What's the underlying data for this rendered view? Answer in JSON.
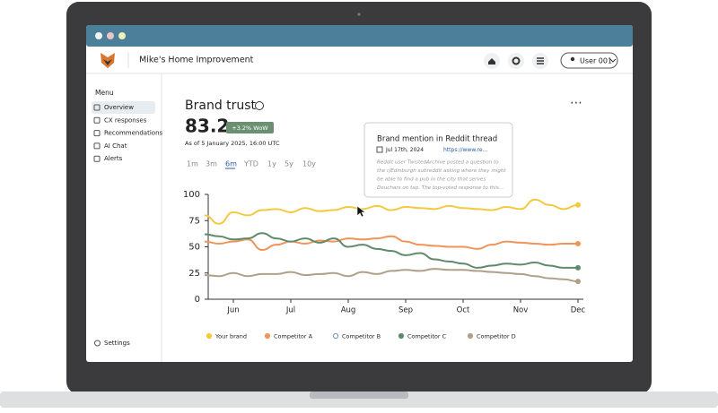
{
  "header": {
    "company": "Mike's Home Improvement",
    "user": "User 001"
  },
  "sidebar": {
    "heading": "Menu",
    "items": [
      "Overview",
      "CX responses",
      "Recommendations",
      "AI Chat",
      "Alerts"
    ],
    "footer": "Settings"
  },
  "metric": {
    "title": "Brand trust",
    "value": "83.2",
    "badge": "+3.2% WoW",
    "asof": "As of 5 January 2025, 16:00 UTC"
  },
  "ranges": [
    "1m",
    "3m",
    "6m",
    "YTD",
    "1y",
    "5y",
    "10y"
  ],
  "tooltip": {
    "title": "Brand mention in Reddit thread",
    "date": "Jul 17th, 2024",
    "link": "https://www.re...",
    "body": [
      "Reddit user TwistedArchive posted a question to",
      "the r/Edinburgh subreddit asking where they might",
      "be able to find a pub in the city that serves",
      "Deuchars on tap. The top-voted response to this..."
    ]
  },
  "chart_data": {
    "type": "line",
    "categories": [
      null,
      null,
      "Jun",
      null,
      null,
      null,
      "Jul",
      null,
      null,
      null,
      "Aug",
      null,
      null,
      null,
      "Sep",
      null,
      null,
      null,
      "Oct",
      null,
      null,
      null,
      "Nov",
      null,
      null,
      null,
      "Dec"
    ],
    "series": [
      {
        "name": "Your brand",
        "color": "#f5c842",
        "values": [
          80,
          72,
          83,
          80,
          85,
          86,
          83,
          87,
          84,
          85,
          88,
          86,
          89,
          85,
          88,
          87,
          86,
          89,
          87,
          86,
          85,
          88,
          86,
          95,
          90,
          86,
          90
        ]
      },
      {
        "name": "Competitor A",
        "color": "#f0955a",
        "values": [
          55,
          53,
          55,
          57,
          47,
          52,
          55,
          53,
          56,
          55,
          58,
          57,
          58,
          60,
          55,
          52,
          51,
          50,
          50,
          48,
          52,
          55,
          54,
          53,
          52,
          53,
          53
        ]
      },
      {
        "name": "Competitor B",
        "color": "#6f93c4",
        "values": [
          null,
          null,
          null,
          null,
          null,
          null,
          null,
          null,
          null,
          null,
          null,
          null,
          null,
          null,
          null,
          null,
          null,
          null,
          null,
          null,
          null,
          null,
          null,
          null,
          null,
          null,
          null
        ]
      },
      {
        "name": "Competitor C",
        "color": "#5f8a6b",
        "values": [
          62,
          60,
          57,
          58,
          63,
          58,
          55,
          58,
          54,
          58,
          50,
          52,
          48,
          46,
          42,
          44,
          38,
          36,
          34,
          30,
          32,
          34,
          33,
          35,
          32,
          30,
          30
        ]
      },
      {
        "name": "Competitor D",
        "color": "#b0a08a",
        "values": [
          23,
          22,
          25,
          22,
          24,
          24,
          26,
          23,
          24,
          25,
          22,
          26,
          24,
          27,
          28,
          27,
          29,
          28,
          28,
          27,
          26,
          25,
          24,
          22,
          20,
          19,
          17
        ]
      }
    ],
    "ylim": [
      0,
      100
    ],
    "yticks": [
      0,
      25,
      50,
      75,
      100
    ],
    "grid": false
  }
}
